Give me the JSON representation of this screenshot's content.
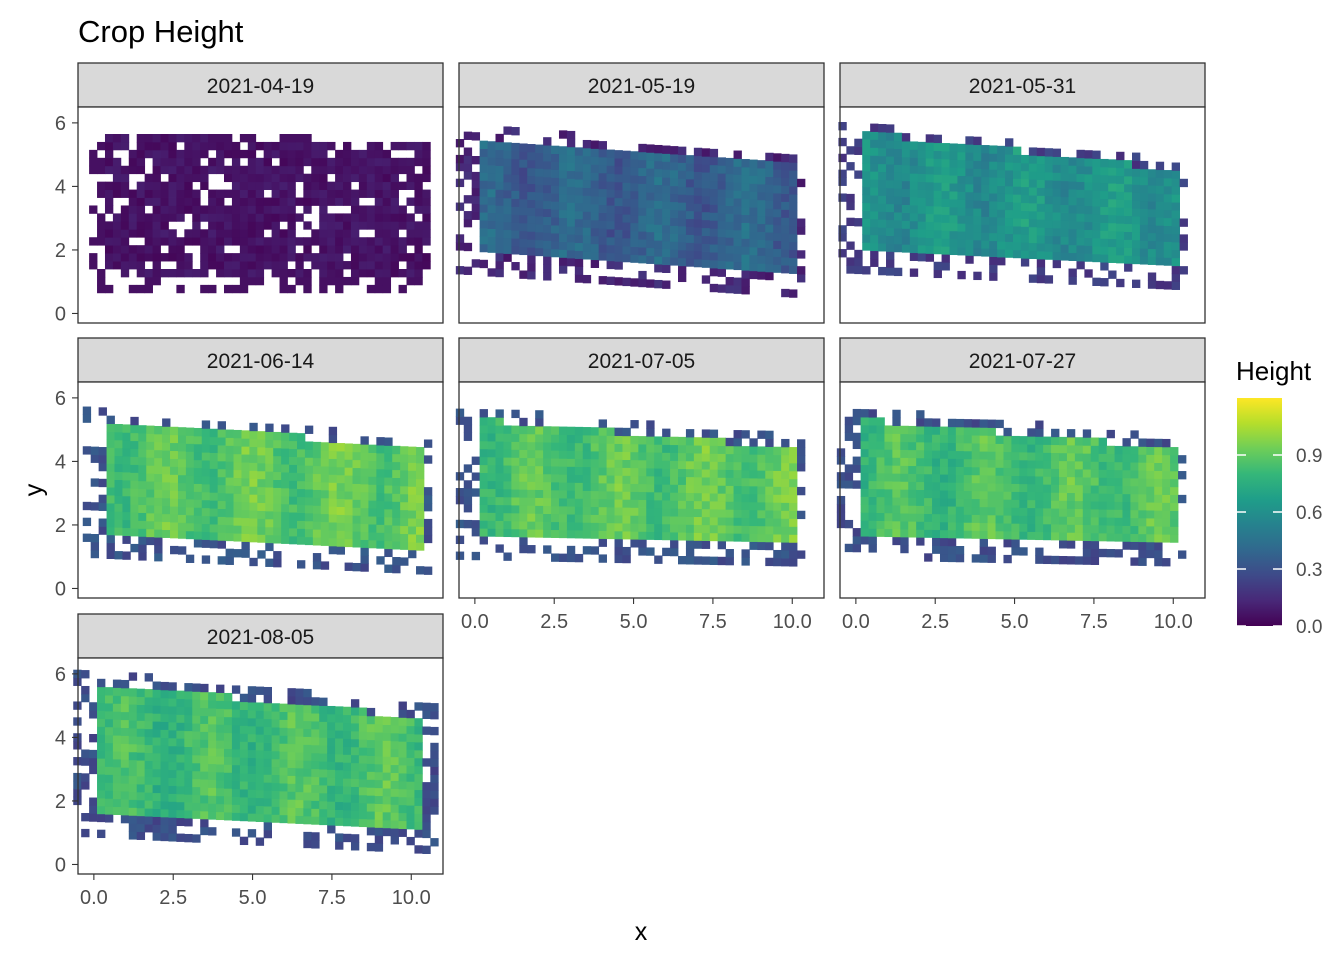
{
  "chart_data": {
    "type": "heatmap",
    "title": "Crop Height",
    "xlabel": "x",
    "ylabel": "y",
    "xlim": [
      -0.5,
      11
    ],
    "ylim": [
      -0.3,
      6.5
    ],
    "x_ticks": [
      0,
      2.5,
      5,
      7.5,
      10
    ],
    "x_tick_labels": [
      "0.0",
      "2.5",
      "5.0",
      "7.5",
      "10.0"
    ],
    "y_ticks": [
      0,
      2,
      4,
      6
    ],
    "y_tick_labels": [
      "0",
      "2",
      "4",
      "6"
    ],
    "cell_size": 0.25,
    "facets": [
      {
        "label": "2021-04-19",
        "level": 0.08,
        "trend": 0.0,
        "field": {
          "x0": 0.2,
          "x1": 10.4,
          "y_left": [
            1.0,
            5.5
          ],
          "y_right": [
            1.0,
            5.2
          ]
        },
        "halo": 0.35,
        "fill": 0.84,
        "shows_x_axis": false
      },
      {
        "label": "2021-05-19",
        "level": 0.36,
        "trend": 0.02,
        "field": {
          "x0": 0.0,
          "x1": 10.0,
          "y_left": [
            1.8,
            5.4
          ],
          "y_right": [
            1.1,
            4.6
          ]
        },
        "halo": 0.6,
        "fill": 1.0,
        "shows_x_axis": false
      },
      {
        "label": "2021-05-31",
        "level": 0.6,
        "trend": 0.03,
        "field": {
          "x0": 0.0,
          "x1": 10.0,
          "y_left": [
            1.8,
            5.6
          ],
          "y_right": [
            1.3,
            4.4
          ]
        },
        "halo": 0.55,
        "fill": 1.0,
        "shows_x_axis": false
      },
      {
        "label": "2021-06-14",
        "level": 0.86,
        "trend": 0.05,
        "field": {
          "x0": 0.2,
          "x1": 10.2,
          "y_left": [
            1.5,
            5.2
          ],
          "y_right": [
            1.0,
            4.3
          ]
        },
        "halo": 0.55,
        "fill": 1.0,
        "shows_x_axis": false
      },
      {
        "label": "2021-07-05",
        "level": 0.85,
        "trend": 0.05,
        "field": {
          "x0": 0.0,
          "x1": 10.0,
          "y_left": [
            1.5,
            5.2
          ],
          "y_right": [
            1.3,
            4.3
          ]
        },
        "halo": 0.6,
        "fill": 1.0,
        "shows_x_axis": true
      },
      {
        "label": "2021-07-27",
        "level": 0.82,
        "trend": 0.05,
        "field": {
          "x0": 0.0,
          "x1": 10.0,
          "y_left": [
            1.5,
            5.2
          ],
          "y_right": [
            1.3,
            4.3
          ]
        },
        "halo": 0.6,
        "fill": 1.0,
        "shows_x_axis": true
      },
      {
        "label": "2021-08-05",
        "level": 0.8,
        "trend": 0.05,
        "field": {
          "x0": 0.0,
          "x1": 10.2,
          "y_left": [
            1.5,
            5.6
          ],
          "y_right": [
            1.0,
            4.5
          ]
        },
        "halo": 0.65,
        "fill": 1.0,
        "shows_x_axis": true
      }
    ],
    "legend": {
      "title": "Height",
      "position": "right",
      "range": [
        0,
        1.2
      ],
      "breaks": [
        0.0,
        0.3,
        0.6,
        0.9
      ],
      "break_labels": [
        "0.0",
        "0.3",
        "0.6",
        "0.9"
      ],
      "palette": [
        "#440154",
        "#482878",
        "#3e4a89",
        "#31688e",
        "#26828e",
        "#1f9e89",
        "#35b779",
        "#6ece58",
        "#b5de2b",
        "#fde725"
      ]
    },
    "grid": false
  }
}
